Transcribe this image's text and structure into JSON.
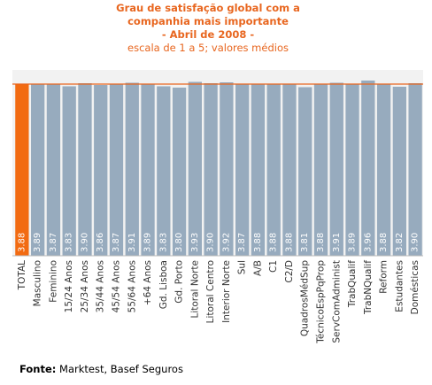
{
  "chart_data": {
    "type": "bar",
    "title_lines": [
      "Grau de satisfação global com a",
      "companhia mais importante",
      "- Abril de 2008 -"
    ],
    "subtitle": "escala de 1 a 5; valores médios",
    "categories": [
      "TOTAL",
      "Masculino",
      "Feminino",
      "15/24 Anos",
      "25/34 Anos",
      "35/44 Anos",
      "45/54 Anos",
      "55/64 Anos",
      "+64 Anos",
      "Gd. Lisboa",
      "Gd. Porto",
      "Litoral Norte",
      "Litoral Centro",
      "Interior Norte",
      "Sul",
      "A/B",
      "C1",
      "C2/D",
      "QuadrosMédSup",
      "TécnicoEspPqProp",
      "ServComAdminist",
      "TrabQualif",
      "TrabNQualif",
      "Reform",
      "Estudantes",
      "Domésticas"
    ],
    "values": [
      3.88,
      3.89,
      3.87,
      3.83,
      3.9,
      3.86,
      3.87,
      3.91,
      3.89,
      3.83,
      3.8,
      3.93,
      3.9,
      3.92,
      3.87,
      3.88,
      3.88,
      3.88,
      3.81,
      3.88,
      3.91,
      3.89,
      3.96,
      3.88,
      3.82,
      3.9
    ],
    "value_labels": [
      "3.88",
      "3.89",
      "3.87",
      "3.83",
      "3.90",
      "3.86",
      "3.87",
      "3.91",
      "3.89",
      "3.83",
      "3.80",
      "3.93",
      "3.90",
      "3.92",
      "3.87",
      "3.88",
      "3.88",
      "3.88",
      "3.81",
      "3.88",
      "3.91",
      "3.89",
      "3.96",
      "3.88",
      "3.82",
      "3.90"
    ],
    "highlight_index": 0,
    "reference_value": 3.88,
    "ylim": [
      0,
      4.2
    ],
    "grid": false,
    "colors": {
      "highlight_bar": "#f26b12",
      "bar": "#97abbe",
      "reference_line": "#e8661f",
      "plot_background": "#f2f2f2",
      "title": "#e8661f",
      "value_label": "#ffffff"
    }
  },
  "source": {
    "label": "Fonte:",
    "text": "Marktest, Basef Seguros"
  }
}
